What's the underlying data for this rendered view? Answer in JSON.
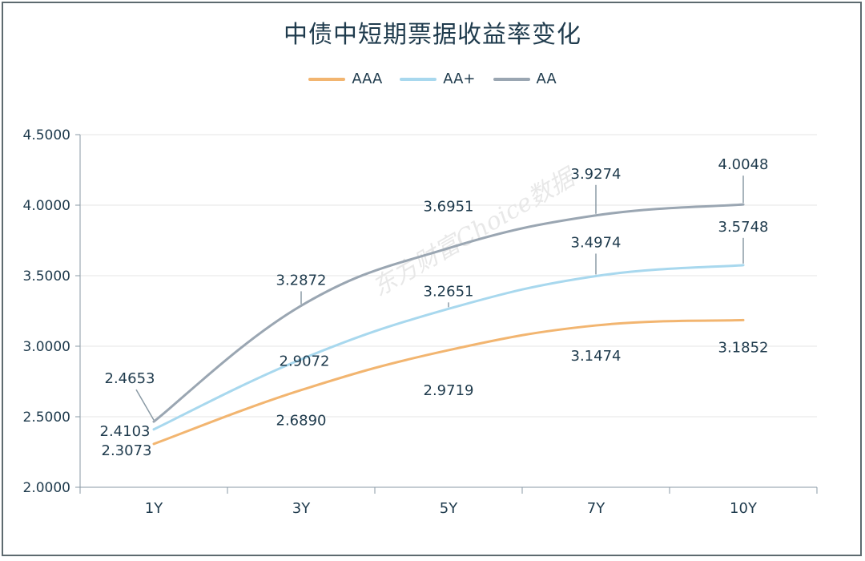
{
  "title": "中债中短期票据收益率变化",
  "watermark": "东方财富Choice数据",
  "chart_data": {
    "type": "line",
    "title": "中债中短期票据收益率变化",
    "categories": [
      "1Y",
      "3Y",
      "5Y",
      "7Y",
      "10Y"
    ],
    "ylim": [
      2.0,
      4.5
    ],
    "yticks": [
      "2.0000",
      "2.5000",
      "3.0000",
      "3.5000",
      "4.0000",
      "4.5000"
    ],
    "grid": true,
    "legend_position": "top-center",
    "series": [
      {
        "name": "AAA",
        "color": "#f2b570",
        "values": [
          2.3073,
          2.689,
          2.9719,
          3.1474,
          3.1852
        ],
        "labels": [
          "2.3073",
          "2.6890",
          "2.9719",
          "3.1474",
          "3.1852"
        ]
      },
      {
        "name": "AA+",
        "color": "#a8d8ee",
        "values": [
          2.4103,
          2.9072,
          3.2651,
          3.4974,
          3.5748
        ],
        "labels": [
          "2.4103",
          "2.9072",
          "3.2651",
          "3.4974",
          "3.5748"
        ]
      },
      {
        "name": "AA",
        "color": "#9aa6b2",
        "values": [
          2.4653,
          3.2872,
          3.6951,
          3.9274,
          4.0048
        ],
        "labels": [
          "2.4653",
          "3.2872",
          "3.6951",
          "3.9274",
          "4.0048"
        ]
      }
    ]
  }
}
